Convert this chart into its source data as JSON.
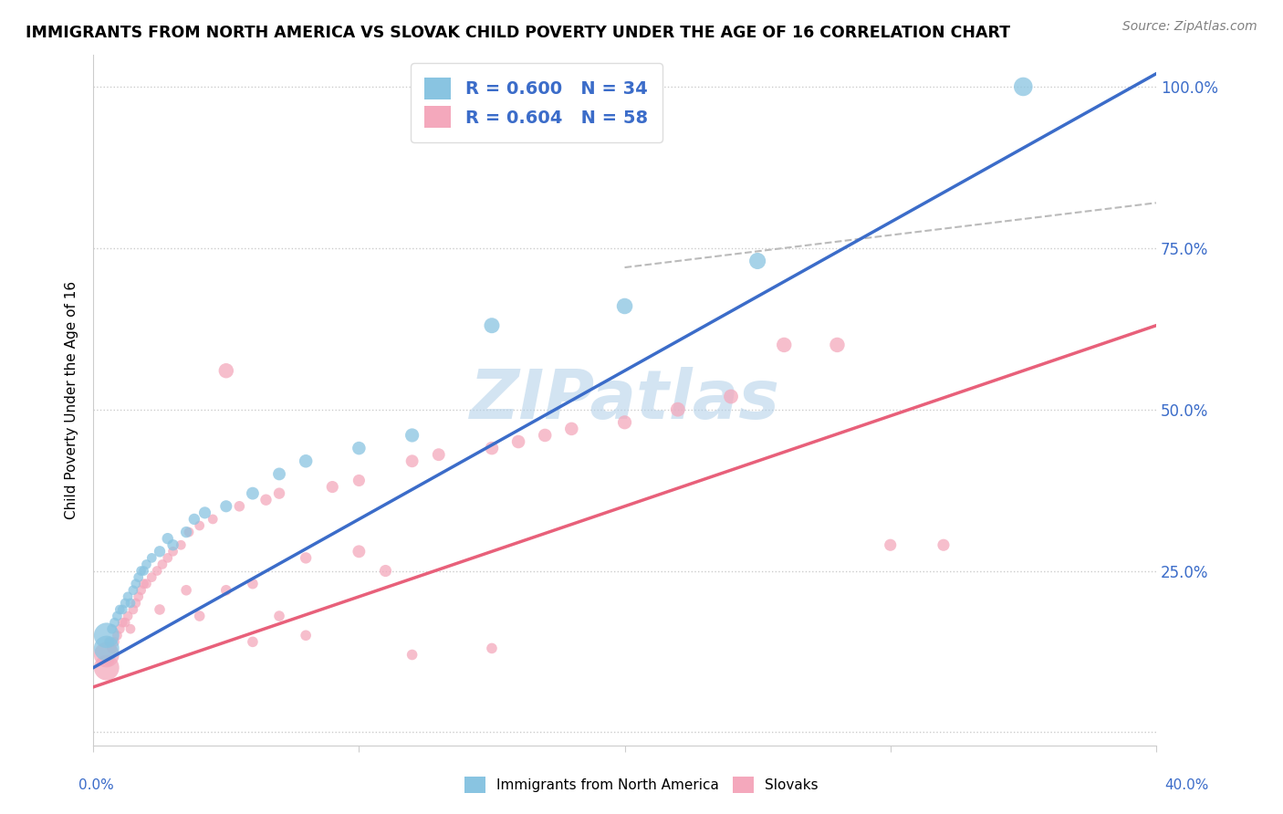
{
  "title": "IMMIGRANTS FROM NORTH AMERICA VS SLOVAK CHILD POVERTY UNDER THE AGE OF 16 CORRELATION CHART",
  "source": "Source: ZipAtlas.com",
  "ylabel": "Child Poverty Under the Age of 16",
  "legend_blue_r": "R = 0.600",
  "legend_blue_n": "N = 34",
  "legend_pink_r": "R = 0.604",
  "legend_pink_n": "N = 58",
  "blue_color": "#89c4e1",
  "pink_color": "#f4a8bc",
  "blue_line_color": "#3b6cc9",
  "pink_line_color": "#e8607a",
  "dash_line_color": "#bbbbbb",
  "watermark": "ZIPatlas",
  "watermark_color": "#b0cfe8",
  "blue_line": [
    [
      0.0,
      0.1
    ],
    [
      0.4,
      1.02
    ]
  ],
  "pink_line": [
    [
      0.0,
      0.07
    ],
    [
      0.4,
      0.63
    ]
  ],
  "dash_line": [
    [
      0.2,
      0.72
    ],
    [
      0.4,
      0.82
    ]
  ],
  "blue_scatter": [
    [
      0.005,
      0.13
    ],
    [
      0.005,
      0.15
    ],
    [
      0.006,
      0.14
    ],
    [
      0.007,
      0.16
    ],
    [
      0.008,
      0.17
    ],
    [
      0.009,
      0.18
    ],
    [
      0.01,
      0.19
    ],
    [
      0.011,
      0.19
    ],
    [
      0.012,
      0.2
    ],
    [
      0.013,
      0.21
    ],
    [
      0.014,
      0.2
    ],
    [
      0.015,
      0.22
    ],
    [
      0.016,
      0.23
    ],
    [
      0.017,
      0.24
    ],
    [
      0.018,
      0.25
    ],
    [
      0.019,
      0.25
    ],
    [
      0.02,
      0.26
    ],
    [
      0.022,
      0.27
    ],
    [
      0.025,
      0.28
    ],
    [
      0.028,
      0.3
    ],
    [
      0.03,
      0.29
    ],
    [
      0.035,
      0.31
    ],
    [
      0.038,
      0.33
    ],
    [
      0.042,
      0.34
    ],
    [
      0.05,
      0.35
    ],
    [
      0.06,
      0.37
    ],
    [
      0.07,
      0.4
    ],
    [
      0.08,
      0.42
    ],
    [
      0.1,
      0.44
    ],
    [
      0.12,
      0.46
    ],
    [
      0.15,
      0.63
    ],
    [
      0.2,
      0.66
    ],
    [
      0.25,
      0.73
    ],
    [
      0.35,
      1.0
    ]
  ],
  "blue_sizes": [
    400,
    400,
    60,
    60,
    60,
    60,
    60,
    60,
    60,
    60,
    60,
    60,
    60,
    60,
    60,
    60,
    60,
    60,
    80,
    80,
    80,
    80,
    80,
    90,
    90,
    100,
    100,
    110,
    110,
    120,
    150,
    160,
    170,
    220
  ],
  "pink_scatter": [
    [
      0.005,
      0.1
    ],
    [
      0.005,
      0.12
    ],
    [
      0.006,
      0.11
    ],
    [
      0.007,
      0.13
    ],
    [
      0.008,
      0.14
    ],
    [
      0.009,
      0.15
    ],
    [
      0.01,
      0.16
    ],
    [
      0.011,
      0.17
    ],
    [
      0.012,
      0.17
    ],
    [
      0.013,
      0.18
    ],
    [
      0.014,
      0.16
    ],
    [
      0.015,
      0.19
    ],
    [
      0.016,
      0.2
    ],
    [
      0.017,
      0.21
    ],
    [
      0.018,
      0.22
    ],
    [
      0.019,
      0.23
    ],
    [
      0.02,
      0.23
    ],
    [
      0.022,
      0.24
    ],
    [
      0.024,
      0.25
    ],
    [
      0.026,
      0.26
    ],
    [
      0.028,
      0.27
    ],
    [
      0.03,
      0.28
    ],
    [
      0.033,
      0.29
    ],
    [
      0.036,
      0.31
    ],
    [
      0.04,
      0.32
    ],
    [
      0.045,
      0.33
    ],
    [
      0.05,
      0.22
    ],
    [
      0.055,
      0.35
    ],
    [
      0.06,
      0.23
    ],
    [
      0.065,
      0.36
    ],
    [
      0.07,
      0.37
    ],
    [
      0.08,
      0.27
    ],
    [
      0.09,
      0.38
    ],
    [
      0.1,
      0.39
    ],
    [
      0.11,
      0.25
    ],
    [
      0.12,
      0.42
    ],
    [
      0.13,
      0.43
    ],
    [
      0.15,
      0.44
    ],
    [
      0.16,
      0.45
    ],
    [
      0.17,
      0.46
    ],
    [
      0.18,
      0.47
    ],
    [
      0.2,
      0.48
    ],
    [
      0.22,
      0.5
    ],
    [
      0.24,
      0.52
    ],
    [
      0.1,
      0.28
    ],
    [
      0.05,
      0.56
    ],
    [
      0.06,
      0.14
    ],
    [
      0.3,
      0.29
    ],
    [
      0.32,
      0.29
    ],
    [
      0.07,
      0.18
    ],
    [
      0.08,
      0.15
    ],
    [
      0.12,
      0.12
    ],
    [
      0.04,
      0.18
    ],
    [
      0.035,
      0.22
    ],
    [
      0.025,
      0.19
    ],
    [
      0.15,
      0.13
    ],
    [
      0.26,
      0.6
    ],
    [
      0.28,
      0.6
    ]
  ],
  "pink_sizes": [
    400,
    400,
    60,
    60,
    60,
    60,
    60,
    60,
    60,
    60,
    60,
    60,
    60,
    60,
    60,
    60,
    60,
    60,
    60,
    60,
    60,
    60,
    60,
    60,
    60,
    60,
    70,
    70,
    70,
    80,
    80,
    80,
    90,
    90,
    90,
    100,
    100,
    110,
    110,
    110,
    110,
    120,
    130,
    130,
    100,
    140,
    70,
    90,
    90,
    70,
    70,
    70,
    70,
    70,
    70,
    70,
    140,
    140
  ],
  "xlim": [
    0.0,
    0.4
  ],
  "ylim": [
    -0.02,
    1.05
  ]
}
